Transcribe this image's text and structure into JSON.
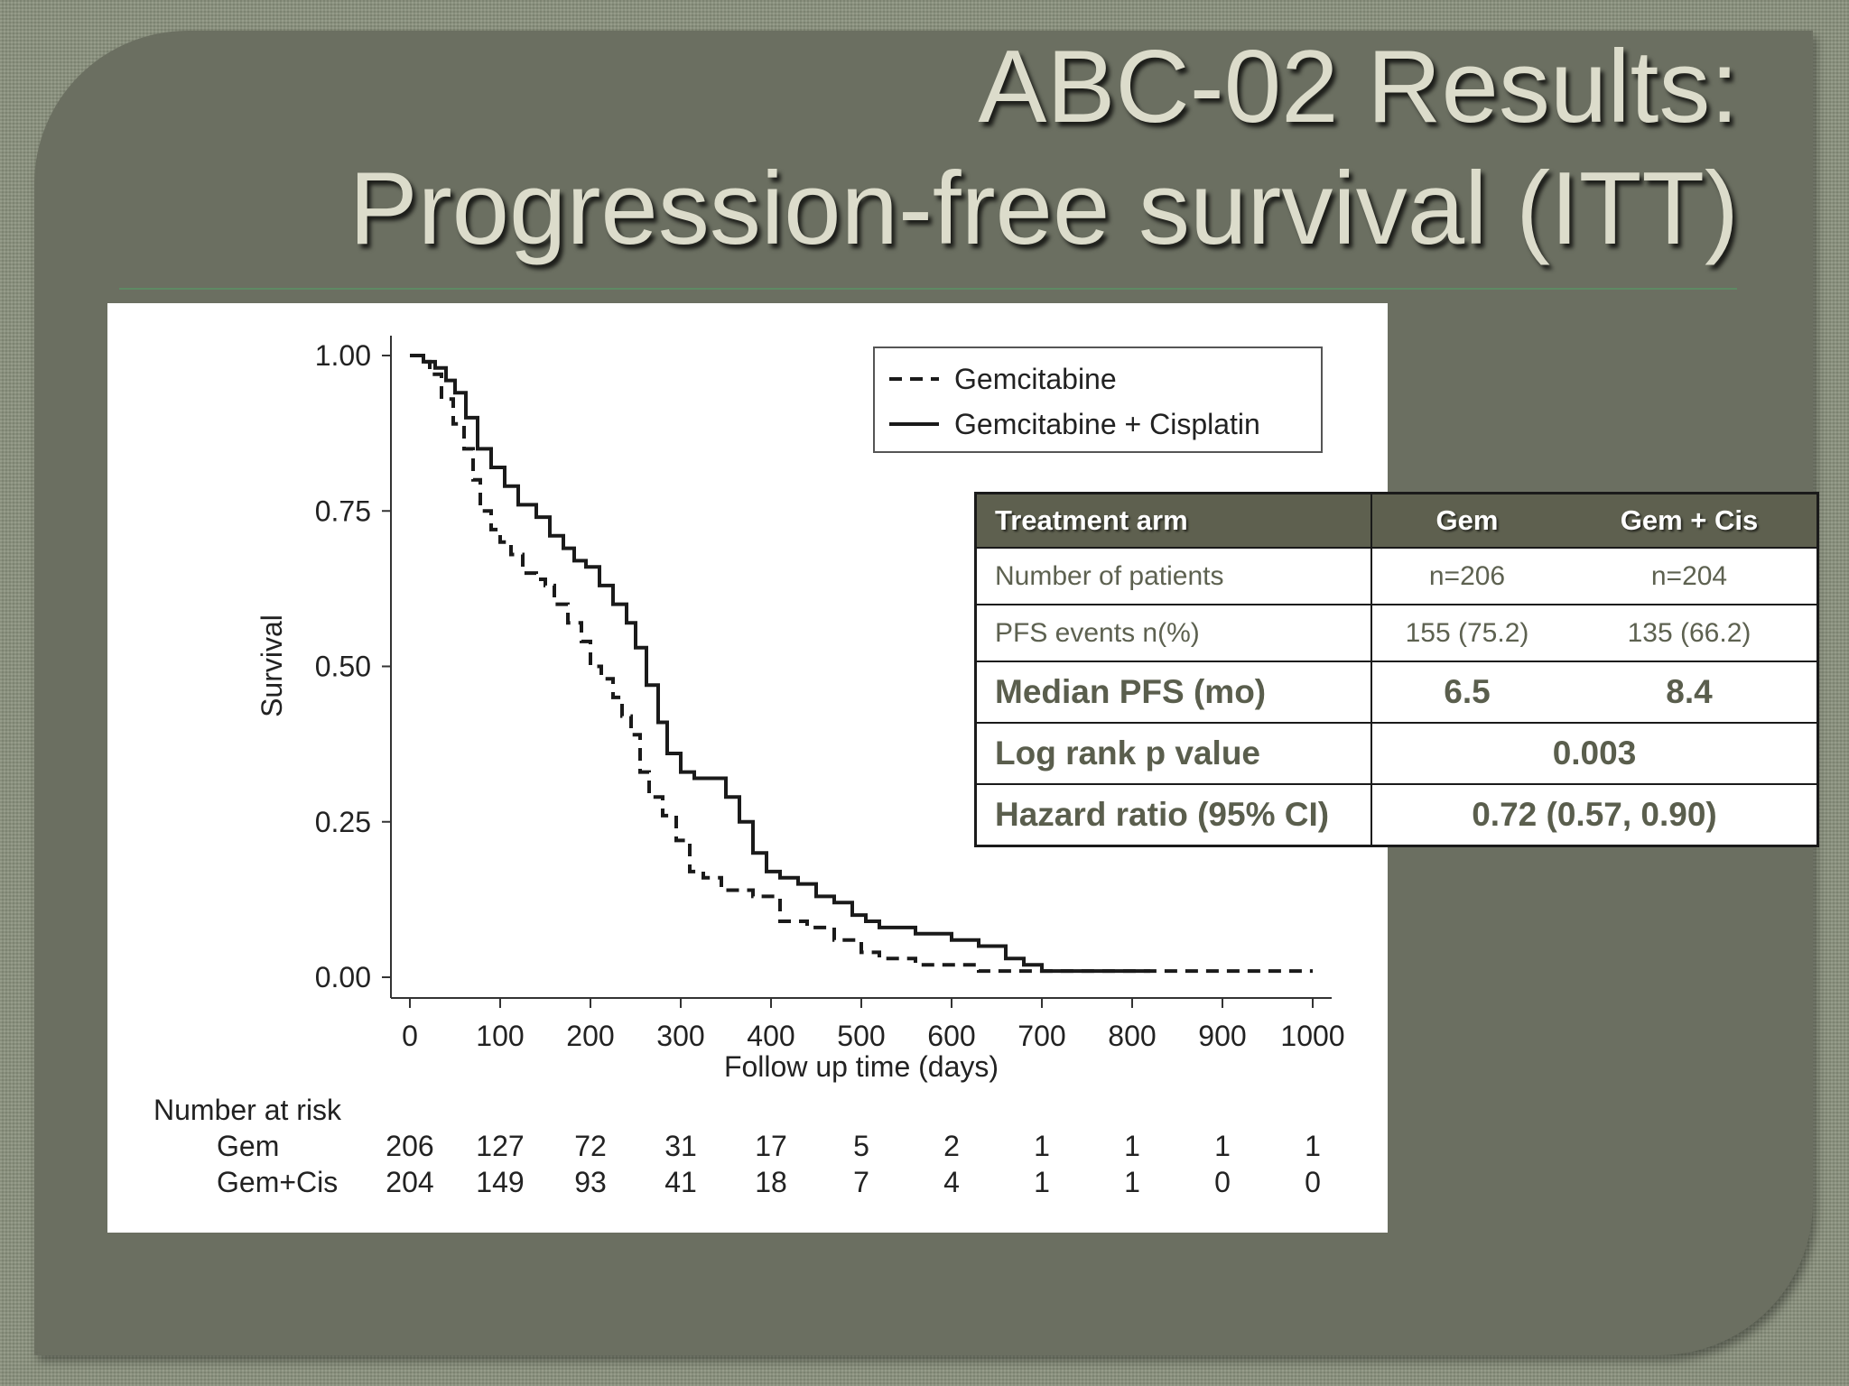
{
  "slide": {
    "title_line1": "ABC-02 Results:",
    "title_line2": "Progression-free survival (ITT)"
  },
  "table": {
    "headers": [
      "Treatment arm",
      "Gem",
      "Gem + Cis"
    ],
    "rows": [
      {
        "label": "Number of patients",
        "gem": "n=206",
        "cis": "n=204",
        "bold": false
      },
      {
        "label": "PFS events n(%)",
        "gem": "155 (75.2)",
        "cis": "135 (66.2)",
        "bold": false
      },
      {
        "label": "Median PFS (mo)",
        "gem": "6.5",
        "cis": "8.4",
        "bold": true
      },
      {
        "label": "Log rank p value",
        "combined": "0.003",
        "bold": true
      },
      {
        "label": "Hazard ratio (95% CI)",
        "combined": "0.72 (0.57, 0.90)",
        "bold": true
      }
    ]
  },
  "colors": {
    "slide_background": "#8a917d",
    "panel": "#6b6f61",
    "title_text": "#dcdccb",
    "table_header": "#5e604f",
    "table_text": "#5d6150",
    "curve": "#1a1a1a"
  },
  "chart_data": {
    "type": "line",
    "subtype": "kaplan-meier",
    "title": "",
    "xlabel": "Follow up time (days)",
    "ylabel": "Survival",
    "xlim": [
      0,
      1000
    ],
    "ylim": [
      0,
      1
    ],
    "x_ticks": [
      0,
      100,
      200,
      300,
      400,
      500,
      600,
      700,
      800,
      900,
      1000
    ],
    "y_ticks": [
      "0.00",
      "0.25",
      "0.50",
      "0.75",
      "1.00"
    ],
    "y_tick_values": [
      0,
      0.25,
      0.5,
      0.75,
      1
    ],
    "grid": false,
    "legend": {
      "position": "top-right",
      "entries": [
        "Gemcitabine",
        "Gemcitabine + Cisplatin"
      ]
    },
    "series": [
      {
        "name": "Gemcitabine",
        "style": "dashed",
        "points": [
          [
            0,
            1.0
          ],
          [
            12,
            0.99
          ],
          [
            22,
            0.97
          ],
          [
            35,
            0.93
          ],
          [
            48,
            0.89
          ],
          [
            60,
            0.85
          ],
          [
            70,
            0.8
          ],
          [
            78,
            0.75
          ],
          [
            90,
            0.72
          ],
          [
            100,
            0.7
          ],
          [
            112,
            0.68
          ],
          [
            125,
            0.65
          ],
          [
            140,
            0.64
          ],
          [
            150,
            0.63
          ],
          [
            160,
            0.6
          ],
          [
            175,
            0.57
          ],
          [
            190,
            0.54
          ],
          [
            200,
            0.5
          ],
          [
            212,
            0.48
          ],
          [
            225,
            0.45
          ],
          [
            235,
            0.42
          ],
          [
            245,
            0.39
          ],
          [
            255,
            0.33
          ],
          [
            265,
            0.29
          ],
          [
            280,
            0.26
          ],
          [
            295,
            0.22
          ],
          [
            310,
            0.17
          ],
          [
            325,
            0.16
          ],
          [
            345,
            0.14
          ],
          [
            360,
            0.14
          ],
          [
            380,
            0.13
          ],
          [
            410,
            0.09
          ],
          [
            440,
            0.08
          ],
          [
            470,
            0.06
          ],
          [
            500,
            0.04
          ],
          [
            520,
            0.03
          ],
          [
            560,
            0.02
          ],
          [
            600,
            0.02
          ],
          [
            630,
            0.01
          ],
          [
            700,
            0.01
          ],
          [
            800,
            0.01
          ],
          [
            1000,
            0.01
          ]
        ]
      },
      {
        "name": "Gemcitabine + Cisplatin",
        "style": "solid",
        "points": [
          [
            0,
            1.0
          ],
          [
            15,
            0.99
          ],
          [
            28,
            0.98
          ],
          [
            40,
            0.96
          ],
          [
            50,
            0.94
          ],
          [
            62,
            0.9
          ],
          [
            75,
            0.85
          ],
          [
            90,
            0.82
          ],
          [
            105,
            0.79
          ],
          [
            120,
            0.76
          ],
          [
            140,
            0.74
          ],
          [
            155,
            0.71
          ],
          [
            170,
            0.69
          ],
          [
            182,
            0.67
          ],
          [
            195,
            0.66
          ],
          [
            210,
            0.63
          ],
          [
            225,
            0.6
          ],
          [
            240,
            0.57
          ],
          [
            250,
            0.53
          ],
          [
            262,
            0.47
          ],
          [
            275,
            0.41
          ],
          [
            285,
            0.36
          ],
          [
            300,
            0.33
          ],
          [
            315,
            0.32
          ],
          [
            335,
            0.32
          ],
          [
            350,
            0.29
          ],
          [
            365,
            0.25
          ],
          [
            380,
            0.2
          ],
          [
            395,
            0.17
          ],
          [
            410,
            0.16
          ],
          [
            430,
            0.15
          ],
          [
            450,
            0.13
          ],
          [
            470,
            0.12
          ],
          [
            490,
            0.1
          ],
          [
            505,
            0.09
          ],
          [
            520,
            0.08
          ],
          [
            560,
            0.07
          ],
          [
            600,
            0.06
          ],
          [
            630,
            0.05
          ],
          [
            660,
            0.03
          ],
          [
            680,
            0.02
          ],
          [
            700,
            0.01
          ],
          [
            750,
            0.01
          ],
          [
            820,
            0.01
          ]
        ]
      }
    ],
    "number_at_risk": {
      "title": "Number at risk",
      "rows": [
        {
          "label": "Gem",
          "values": [
            206,
            127,
            72,
            31,
            17,
            5,
            2,
            1,
            1,
            1,
            1
          ]
        },
        {
          "label": "Gem+Cis",
          "values": [
            204,
            149,
            93,
            41,
            18,
            7,
            4,
            1,
            1,
            0,
            0
          ]
        }
      ]
    }
  }
}
